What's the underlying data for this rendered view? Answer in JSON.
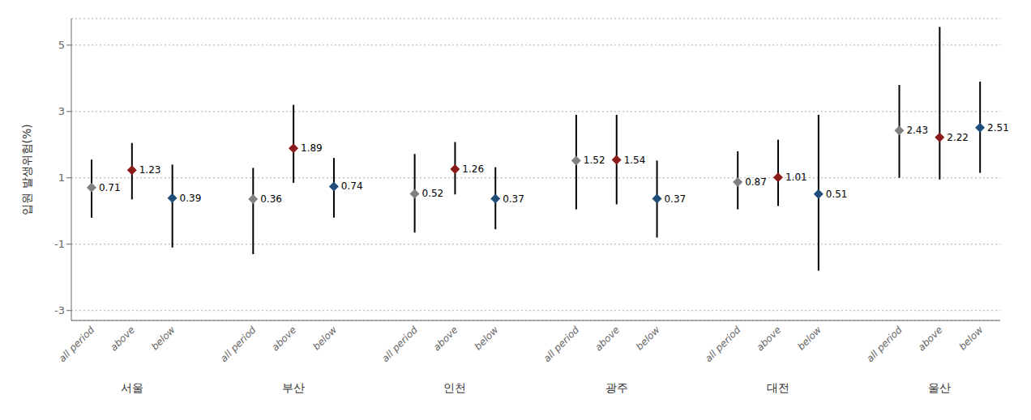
{
  "chart_data": {
    "type": "scatter",
    "marker": "diamond",
    "ylabel": "입원 발생위험(%)",
    "categories": [
      "all period",
      "above",
      "below",
      "all period",
      "above",
      "below",
      "all period",
      "above",
      "below",
      "all period",
      "above",
      "below",
      "all period",
      "above",
      "below",
      "all period",
      "above",
      "below"
    ],
    "groups": [
      "서울",
      "부산",
      "인천",
      "광주",
      "대전",
      "울산"
    ],
    "values": [
      0.71,
      1.23,
      0.39,
      0.36,
      1.89,
      0.74,
      0.52,
      1.26,
      0.37,
      1.52,
      1.54,
      0.37,
      0.87,
      1.01,
      0.51,
      2.43,
      2.22,
      2.51
    ],
    "ci_low": [
      -0.2,
      0.35,
      -1.1,
      -1.3,
      0.85,
      -0.2,
      -0.65,
      0.5,
      -0.55,
      0.05,
      0.2,
      -0.8,
      0.05,
      0.15,
      -1.8,
      1.0,
      0.95,
      1.15
    ],
    "ci_high": [
      1.55,
      2.05,
      1.4,
      1.3,
      3.2,
      1.6,
      1.72,
      2.08,
      1.32,
      2.9,
      2.9,
      1.52,
      1.8,
      2.15,
      2.9,
      3.8,
      5.55,
      3.9
    ],
    "colors": [
      "#808080",
      "#8B1A1A",
      "#1F4E79",
      "#808080",
      "#8B1A1A",
      "#1F4E79",
      "#808080",
      "#8B1A1A",
      "#1F4E79",
      "#808080",
      "#8B1A1A",
      "#1F4E79",
      "#808080",
      "#8B1A1A",
      "#1F4E79",
      "#808080",
      "#8B1A1A",
      "#1F4E79"
    ],
    "ylim": [
      -3.3,
      5.8
    ],
    "yticks": [
      -3,
      -1,
      1,
      3,
      5
    ],
    "grid": true,
    "data_labels": true
  }
}
